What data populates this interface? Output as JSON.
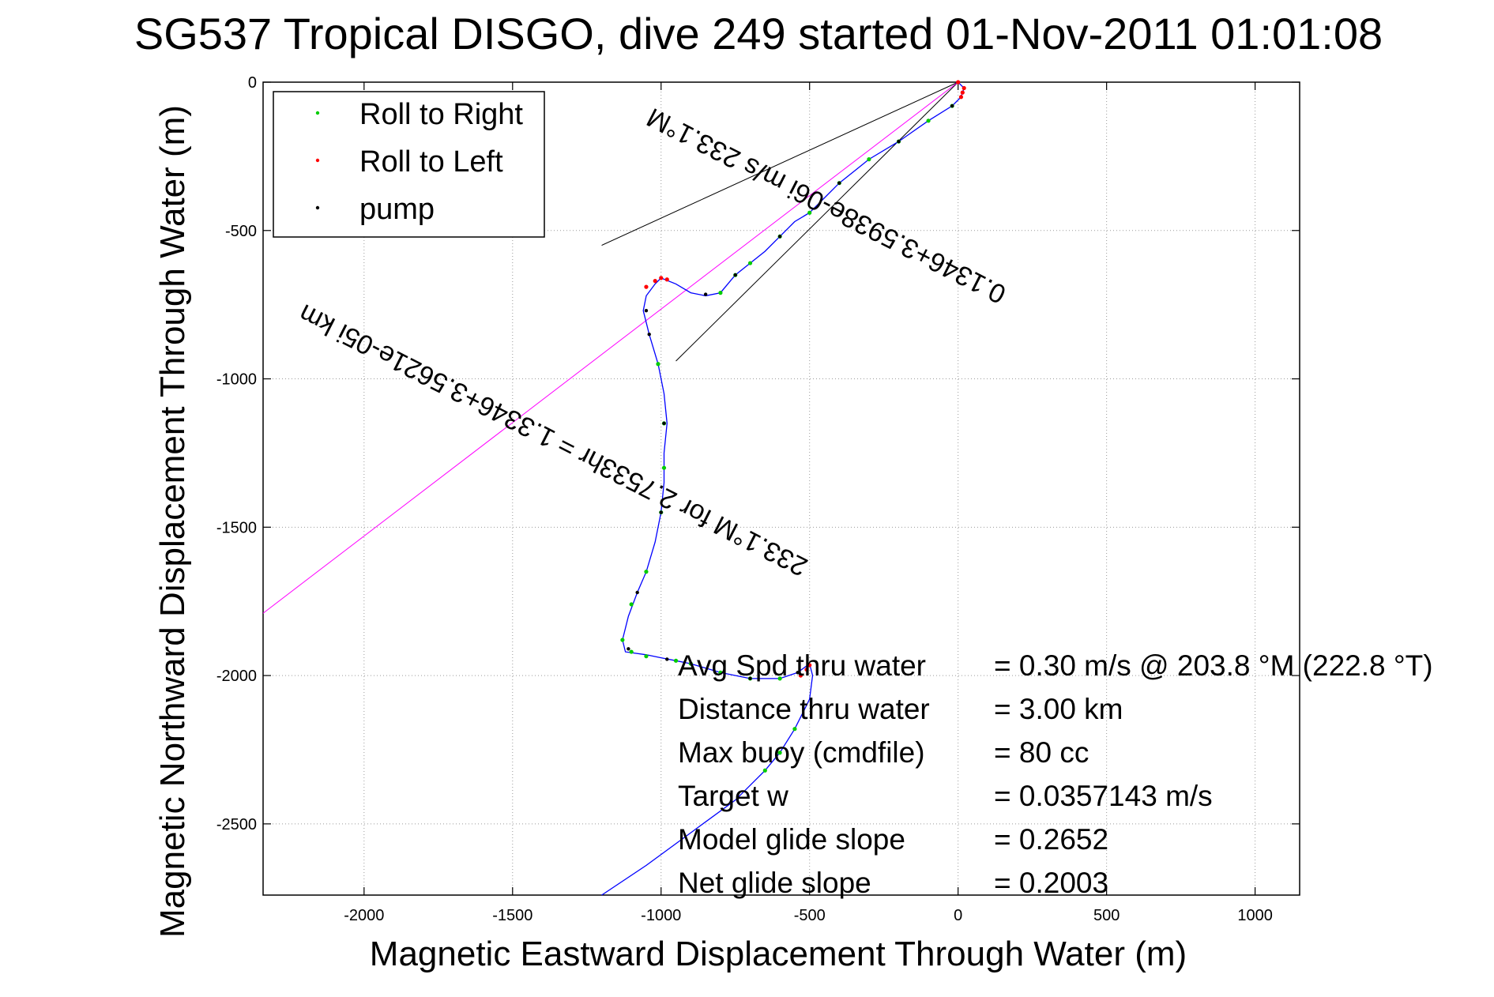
{
  "chart_data": {
    "type": "line",
    "title": "SG537 Tropical DISGO, dive 249 started 01-Nov-2011 01:01:08",
    "xlabel": "Magnetic Eastward Displacement Through Water (m)",
    "ylabel": "Magnetic Northward Displacement Through Water (m)",
    "xlim": [
      -2340,
      1150
    ],
    "ylim": [
      -2740,
      0
    ],
    "xticks": [
      -2000,
      -1500,
      -1000,
      -500,
      0,
      500,
      1000
    ],
    "yticks": [
      0,
      -500,
      -1000,
      -1500,
      -2000,
      -2500
    ],
    "grid": true,
    "legend_position": "top-left",
    "legend": [
      {
        "label": "Roll to Right",
        "color": "#00cc00"
      },
      {
        "label": "Roll to Left",
        "color": "#ff0000"
      },
      {
        "label": "pump",
        "color": "#000000"
      }
    ],
    "series": [
      {
        "color": "#0000ff",
        "style": "line",
        "x": [
          0,
          20,
          10,
          -20,
          -100,
          -200,
          -300,
          -350,
          -400,
          -450,
          -500,
          -550,
          -600,
          -650,
          -700,
          -750,
          -800,
          -850,
          -900,
          -950,
          -1000,
          -1020,
          -1050,
          -1060,
          -1040,
          -1010,
          -990,
          -980,
          -990,
          -990,
          -1000,
          -1020,
          -1050,
          -1080,
          -1110,
          -1130,
          -1120,
          -1050,
          -1000,
          -950,
          -900,
          -800,
          -700,
          -600,
          -540,
          -500,
          -490,
          -500,
          -550,
          -600,
          -650,
          -750,
          -900,
          -1050,
          -1200
        ],
        "y": [
          0,
          -20,
          -50,
          -80,
          -130,
          -200,
          -260,
          -300,
          -340,
          -390,
          -440,
          -470,
          -520,
          -570,
          -610,
          -650,
          -710,
          -720,
          -710,
          -680,
          -660,
          -680,
          -720,
          -770,
          -850,
          -950,
          -1050,
          -1150,
          -1250,
          -1350,
          -1450,
          -1550,
          -1650,
          -1720,
          -1800,
          -1880,
          -1920,
          -1930,
          -1940,
          -1950,
          -1960,
          -1990,
          -2010,
          -2010,
          -1990,
          -1960,
          -2000,
          -2080,
          -2180,
          -2260,
          -2320,
          -2420,
          -2530,
          -2640,
          -2740
        ]
      },
      {
        "name": "Roll to Right",
        "color": "#00cc00",
        "style": "dots",
        "x": [
          -20,
          -100,
          -200,
          -300,
          -400,
          -500,
          -600,
          -700,
          -750,
          -800,
          -1010,
          -990,
          -990,
          -1000,
          -1050,
          -1100,
          -1130,
          -1100,
          -1050,
          -950,
          -900,
          -800,
          -700,
          -600,
          -550,
          -600,
          -650
        ],
        "y": [
          -80,
          -130,
          -200,
          -260,
          -340,
          -440,
          -520,
          -610,
          -650,
          -710,
          -950,
          -1150,
          -1300,
          -1450,
          -1650,
          -1760,
          -1880,
          -1920,
          -1935,
          -1950,
          -1960,
          -1990,
          -2010,
          -2010,
          -2180,
          -2260,
          -2320
        ]
      },
      {
        "name": "Roll to Left",
        "color": "#ff0000",
        "style": "dots",
        "x": [
          0,
          20,
          15,
          10,
          -980,
          -1000,
          -1020,
          -1050,
          -530,
          -510,
          -500
        ],
        "y": [
          0,
          -20,
          -35,
          -50,
          -665,
          -660,
          -670,
          -690,
          -2000,
          -1980,
          -1965
        ]
      },
      {
        "name": "pump",
        "color": "#000000",
        "style": "dots",
        "x": [
          -20,
          -200,
          -400,
          -600,
          -750,
          -850,
          -1050,
          -1040,
          -990,
          -1000,
          -1080,
          -1110,
          -980,
          -700,
          -540
        ],
        "y": [
          -80,
          -200,
          -340,
          -520,
          -650,
          -715,
          -770,
          -850,
          -1150,
          -1450,
          -1720,
          -1910,
          -1945,
          -2010,
          -1990
        ]
      }
    ],
    "annotations": {
      "current_label": "0.1346+3.5938e-06i m/s 233.1°M",
      "current_lines": [
        {
          "x": [
            0,
            -1200
          ],
          "y": [
            0,
            -550
          ]
        },
        {
          "x": [
            0,
            -950
          ],
          "y": [
            0,
            -940
          ]
        }
      ],
      "drift_label": "233.1°M for 2.7533hr = 1.3346+3.5621e-05i km",
      "drift_line": {
        "x": [
          0,
          -2340
        ],
        "y": [
          0,
          -1790
        ]
      }
    },
    "stats": [
      {
        "label": "Avg Spd thru water",
        "value": "=  0.30 m/s @ 203.8 °M (222.8 °T)"
      },
      {
        "label": "Distance thru water",
        "value": "=  3.00 km"
      },
      {
        "label": "Max buoy (cmdfile)",
        "value": "= 80 cc"
      },
      {
        "label": "Target w",
        "value": "= 0.0357143 m/s"
      },
      {
        "label": "Model glide slope",
        "value": "= 0.2652"
      },
      {
        "label": "Net glide slope",
        "value": "= 0.2003"
      }
    ]
  }
}
